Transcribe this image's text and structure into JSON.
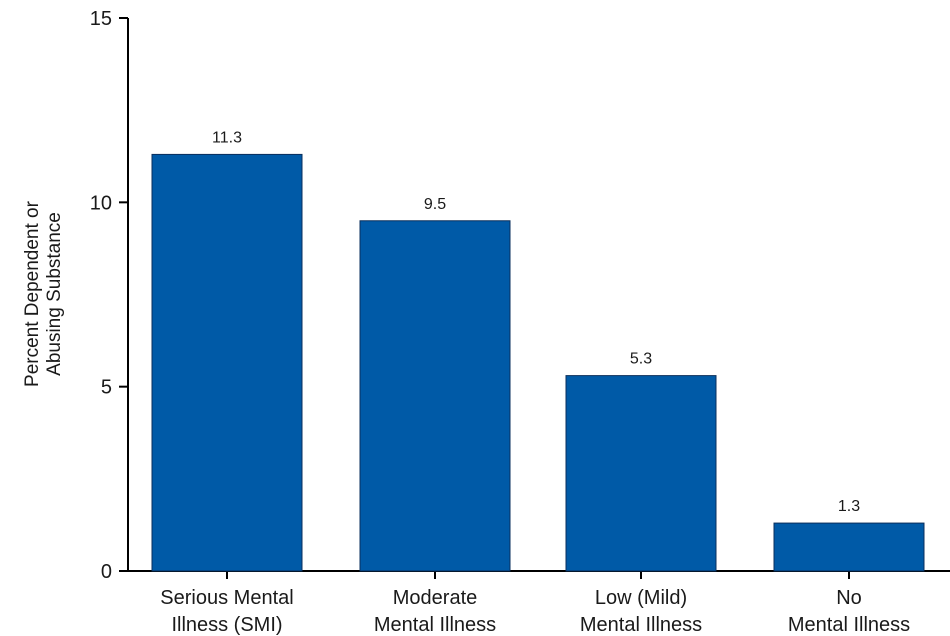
{
  "chart_data": {
    "type": "bar",
    "ylabel_lines": [
      "Percent Dependent or",
      "Abusing Substance"
    ],
    "categories": [
      [
        "Serious Mental",
        "Illness (SMI)"
      ],
      [
        "Moderate",
        "Mental Illness"
      ],
      [
        "Low (Mild)",
        "Mental Illness"
      ],
      [
        "No",
        "Mental Illness"
      ]
    ],
    "values": [
      11.3,
      9.5,
      5.3,
      1.3
    ],
    "value_labels": [
      "11.3",
      "9.5",
      "5.3",
      "1.3"
    ],
    "ylim": [
      0,
      15
    ],
    "yticks": [
      0,
      5,
      10,
      15
    ],
    "bar_color": "#005aa7",
    "grid": false
  }
}
